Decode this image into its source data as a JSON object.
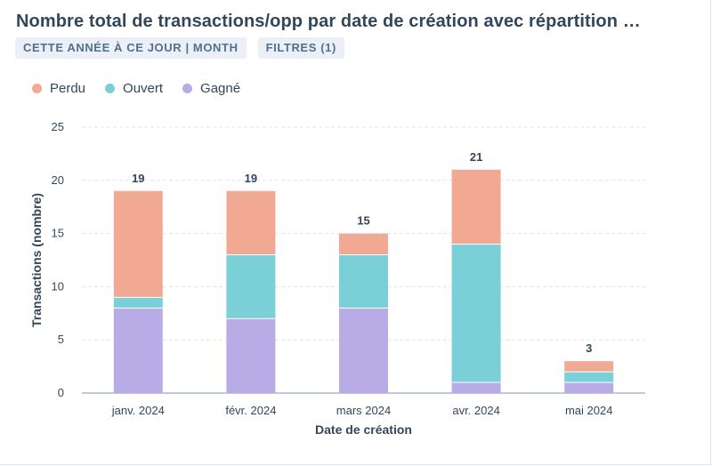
{
  "title": "Nombre total de transactions/opp par date de création avec répartition …",
  "tags": {
    "period": "CETTE ANNÉE À CE JOUR | MONTH",
    "filters": "FILTRES (1)"
  },
  "colors": {
    "perdu": "#f2a994",
    "ouvert": "#7bd0d8",
    "gagne": "#b9ace6",
    "grid": "#dfe3eb",
    "axis": "#7c98b6"
  },
  "chart_data": {
    "type": "bar",
    "stacked": true,
    "title": "Nombre total de transactions/opp par date de création avec répartition …",
    "xlabel": "Date de création",
    "ylabel": "Transactions (nombre)",
    "ylim": [
      0,
      25
    ],
    "yticks": [
      "0",
      "5",
      "10",
      "15",
      "20",
      "25"
    ],
    "categories": [
      "janv. 2024",
      "févr. 2024",
      "mars 2024",
      "avr. 2024",
      "mai 2024"
    ],
    "series": [
      {
        "name": "Gagné",
        "key": "gagne",
        "values": [
          8,
          7,
          8,
          1,
          1
        ]
      },
      {
        "name": "Ouvert",
        "key": "ouvert",
        "values": [
          1,
          6,
          5,
          13,
          1
        ]
      },
      {
        "name": "Perdu",
        "key": "perdu",
        "values": [
          10,
          6,
          2,
          7,
          1
        ]
      }
    ],
    "totals": [
      "19",
      "19",
      "15",
      "21",
      "3"
    ],
    "legend": [
      {
        "name": "Perdu",
        "key": "perdu"
      },
      {
        "name": "Ouvert",
        "key": "ouvert"
      },
      {
        "name": "Gagné",
        "key": "gagne"
      }
    ],
    "legend_position": "top-left"
  }
}
